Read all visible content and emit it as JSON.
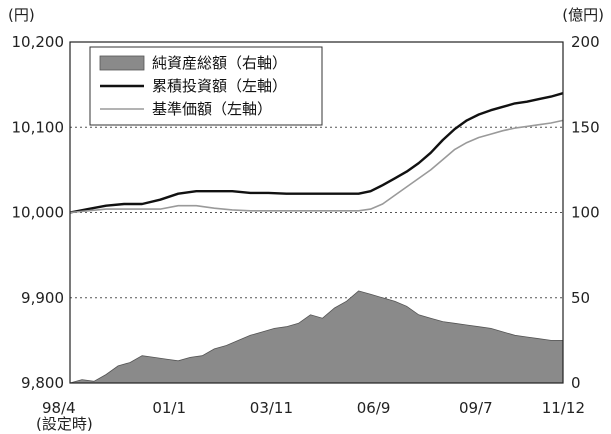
{
  "chart_data": {
    "type": "line",
    "left_axis": {
      "unit": "(円)",
      "ticks": [
        "10,200",
        "10,100",
        "10,000",
        "9,900",
        "9,800"
      ],
      "ylim": [
        9800,
        10200
      ]
    },
    "right_axis": {
      "unit": "(億円)",
      "ticks": [
        "200",
        "150",
        "100",
        "50",
        "0"
      ],
      "ylim": [
        0,
        200
      ]
    },
    "x_ticks": [
      {
        "label": "98/4",
        "sub": "(設定時)",
        "t": 0
      },
      {
        "label": "01/1",
        "t": 33
      },
      {
        "label": "03/11",
        "t": 67
      },
      {
        "label": "06/9",
        "t": 101
      },
      {
        "label": "09/7",
        "t": 135
      },
      {
        "label": "11/12",
        "t": 164
      }
    ],
    "x_range": [
      0,
      164
    ],
    "grid": {
      "y_dashed_at_left": [
        10100,
        9900
      ],
      "y_dashed_at_right": [
        100
      ]
    },
    "legend": {
      "placement": "top-left",
      "items": [
        {
          "label": "純資産総額（右軸）",
          "kind": "area",
          "color": "#8a8a8a"
        },
        {
          "label": "累積投資額（左軸）",
          "kind": "line",
          "color": "#111111"
        },
        {
          "label": "基準価額（左軸）",
          "kind": "line",
          "color": "#9a9a9a"
        }
      ]
    },
    "series": [
      {
        "name": "純資産総額（右軸）",
        "axis": "right",
        "type": "area",
        "color": "#8a8a8a",
        "x": [
          0,
          4,
          8,
          12,
          16,
          20,
          24,
          28,
          32,
          36,
          40,
          44,
          48,
          52,
          56,
          60,
          64,
          68,
          72,
          76,
          80,
          84,
          88,
          92,
          96,
          100,
          104,
          108,
          112,
          116,
          120,
          124,
          128,
          132,
          136,
          140,
          144,
          148,
          152,
          156,
          160,
          164
        ],
        "values": [
          0,
          2,
          1,
          5,
          10,
          12,
          16,
          15,
          14,
          13,
          15,
          16,
          20,
          22,
          25,
          28,
          30,
          32,
          33,
          35,
          40,
          38,
          44,
          48,
          54,
          52,
          50,
          48,
          45,
          40,
          38,
          36,
          35,
          34,
          33,
          32,
          30,
          28,
          27,
          26,
          25,
          25
        ]
      },
      {
        "name": "累積投資額（左軸）",
        "axis": "left",
        "type": "line",
        "color": "#111111",
        "x": [
          0,
          6,
          12,
          18,
          24,
          30,
          36,
          42,
          48,
          54,
          60,
          66,
          72,
          78,
          84,
          90,
          96,
          100,
          104,
          108,
          112,
          116,
          120,
          124,
          128,
          132,
          136,
          140,
          144,
          148,
          152,
          156,
          160,
          164
        ],
        "values": [
          10000,
          10004,
          10008,
          10010,
          10010,
          10015,
          10022,
          10025,
          10025,
          10025,
          10023,
          10023,
          10022,
          10022,
          10022,
          10022,
          10022,
          10025,
          10032,
          10040,
          10048,
          10058,
          10070,
          10085,
          10098,
          10108,
          10115,
          10120,
          10124,
          10128,
          10130,
          10133,
          10136,
          10140
        ]
      },
      {
        "name": "基準価額（左軸）",
        "axis": "left",
        "type": "line",
        "color": "#9a9a9a",
        "x": [
          0,
          6,
          12,
          18,
          24,
          30,
          36,
          42,
          48,
          54,
          60,
          66,
          72,
          78,
          84,
          90,
          96,
          100,
          104,
          108,
          112,
          116,
          120,
          124,
          128,
          132,
          136,
          140,
          144,
          148,
          152,
          156,
          160,
          164
        ],
        "values": [
          10000,
          10002,
          10004,
          10004,
          10004,
          10004,
          10008,
          10008,
          10005,
          10003,
          10002,
          10002,
          10002,
          10002,
          10002,
          10002,
          10002,
          10004,
          10010,
          10020,
          10030,
          10040,
          10050,
          10062,
          10074,
          10082,
          10088,
          10092,
          10096,
          10099,
          10101,
          10103,
          10105,
          10108
        ]
      }
    ]
  }
}
